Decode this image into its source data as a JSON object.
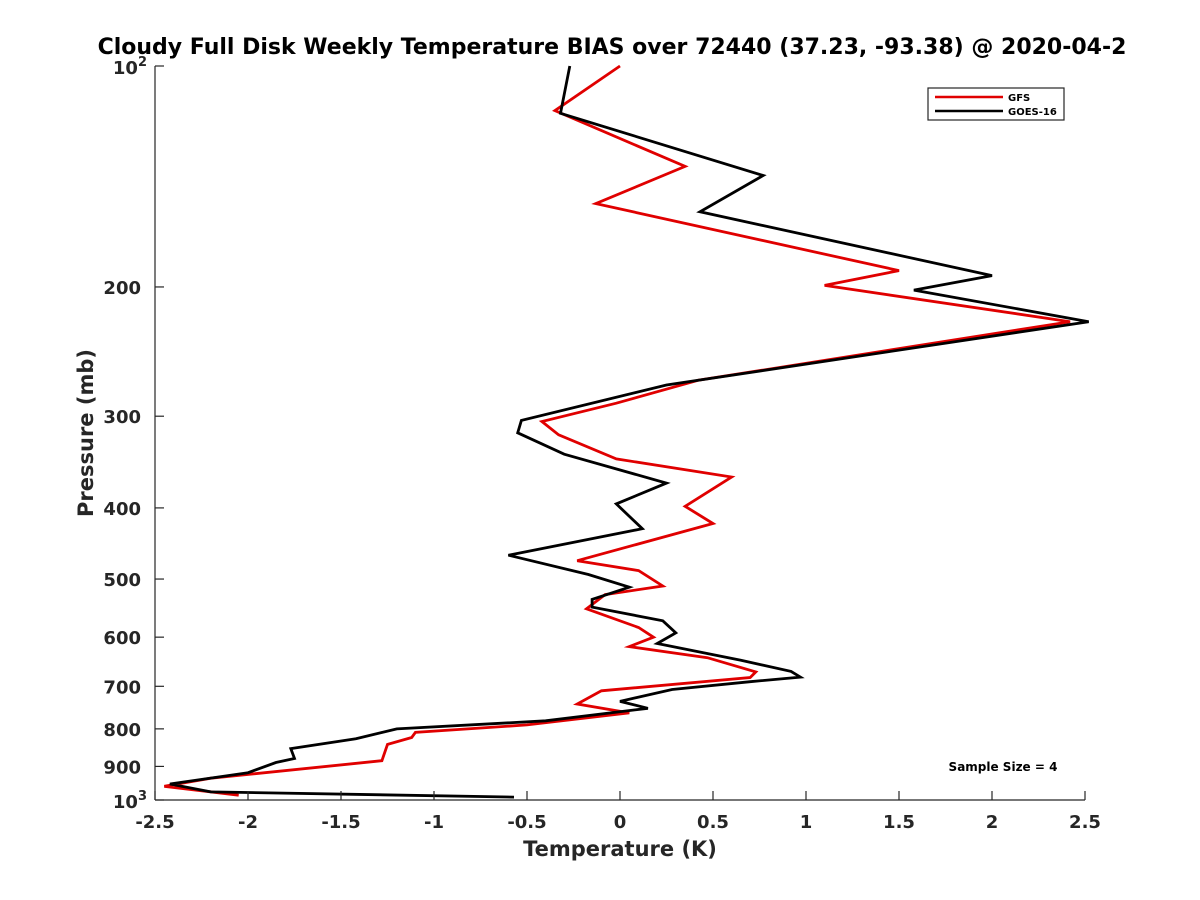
{
  "chart_data": {
    "type": "line",
    "title": "Cloudy Full Disk Weekly Temperature BIAS over 72440 (37.23, -93.38) @ 2020-04-2",
    "xlabel": "Temperature (K)",
    "ylabel": "Pressure (mb)",
    "xlim": [
      -2.5,
      2.5
    ],
    "ylim": [
      100,
      1000
    ],
    "y_scale": "log",
    "y_reversed": true,
    "x_ticks": [
      "-2.5",
      "-2",
      "-1.5",
      "-1",
      "-0.5",
      "0",
      "0.5",
      "1",
      "1.5",
      "2",
      "2.5"
    ],
    "y_ticks": [
      {
        "value": 100,
        "base": "10",
        "sup": "2"
      },
      {
        "value": 200,
        "base": "200",
        "sup": ""
      },
      {
        "value": 300,
        "base": "300",
        "sup": ""
      },
      {
        "value": 400,
        "base": "400",
        "sup": ""
      },
      {
        "value": 500,
        "base": "500",
        "sup": ""
      },
      {
        "value": 600,
        "base": "600",
        "sup": ""
      },
      {
        "value": 700,
        "base": "700",
        "sup": ""
      },
      {
        "value": 800,
        "base": "800",
        "sup": ""
      },
      {
        "value": 900,
        "base": "900",
        "sup": ""
      },
      {
        "value": 1000,
        "base": "10",
        "sup": "3"
      }
    ],
    "grid": false,
    "legend_position": "top-right",
    "series": [
      {
        "name": "GFS",
        "color": "#e00000",
        "points": [
          [
            0.0,
            100
          ],
          [
            -0.35,
            115
          ],
          [
            0.35,
            137
          ],
          [
            -0.13,
            154
          ],
          [
            1.5,
            190
          ],
          [
            1.1,
            199
          ],
          [
            2.42,
            223
          ],
          [
            0.42,
            268
          ],
          [
            -0.02,
            288
          ],
          [
            -0.42,
            305
          ],
          [
            -0.33,
            318
          ],
          [
            -0.02,
            343
          ],
          [
            0.6,
            363
          ],
          [
            0.35,
            398
          ],
          [
            0.5,
            420
          ],
          [
            -0.23,
            472
          ],
          [
            0.1,
            487
          ],
          [
            0.23,
            511
          ],
          [
            -0.08,
            525
          ],
          [
            -0.18,
            549
          ],
          [
            0.1,
            582
          ],
          [
            0.18,
            600
          ],
          [
            0.05,
            618
          ],
          [
            0.47,
            640
          ],
          [
            0.73,
            669
          ],
          [
            0.7,
            681
          ],
          [
            -0.1,
            710
          ],
          [
            -0.23,
            740
          ],
          [
            0.05,
            761
          ],
          [
            -0.5,
            790
          ],
          [
            -1.1,
            809
          ],
          [
            -1.12,
            822
          ],
          [
            -1.25,
            840
          ],
          [
            -1.28,
            884
          ],
          [
            -2.2,
            934
          ],
          [
            -2.45,
            958
          ],
          [
            -2.05,
            985
          ]
        ]
      },
      {
        "name": "GOES-16",
        "color": "#000000",
        "points": [
          [
            -0.27,
            100
          ],
          [
            -0.32,
            116
          ],
          [
            0.77,
            141
          ],
          [
            0.43,
            158
          ],
          [
            2.0,
            193
          ],
          [
            1.58,
            202
          ],
          [
            2.52,
            223
          ],
          [
            0.25,
            272
          ],
          [
            -0.53,
            304
          ],
          [
            -0.55,
            316
          ],
          [
            -0.3,
            338
          ],
          [
            0.25,
            370
          ],
          [
            -0.02,
            395
          ],
          [
            0.12,
            427
          ],
          [
            -0.6,
            464
          ],
          [
            -0.17,
            493
          ],
          [
            0.05,
            513
          ],
          [
            -0.15,
            533
          ],
          [
            -0.15,
            546
          ],
          [
            0.23,
            570
          ],
          [
            0.3,
            592
          ],
          [
            0.2,
            612
          ],
          [
            0.65,
            645
          ],
          [
            0.92,
            668
          ],
          [
            0.97,
            680
          ],
          [
            0.7,
            690
          ],
          [
            0.28,
            707
          ],
          [
            0.0,
            734
          ],
          [
            0.15,
            750
          ],
          [
            -0.4,
            780
          ],
          [
            -1.2,
            800
          ],
          [
            -1.42,
            825
          ],
          [
            -1.77,
            851
          ],
          [
            -1.75,
            878
          ],
          [
            -1.85,
            889
          ],
          [
            -2.0,
            918
          ],
          [
            -2.42,
            951
          ],
          [
            -2.2,
            975
          ],
          [
            -0.57,
            991
          ]
        ]
      }
    ],
    "legend": [
      {
        "name": "GFS",
        "color": "#e00000"
      },
      {
        "name": "GOES-16",
        "color": "#000000"
      }
    ],
    "annotation": "Sample Size = 4"
  }
}
